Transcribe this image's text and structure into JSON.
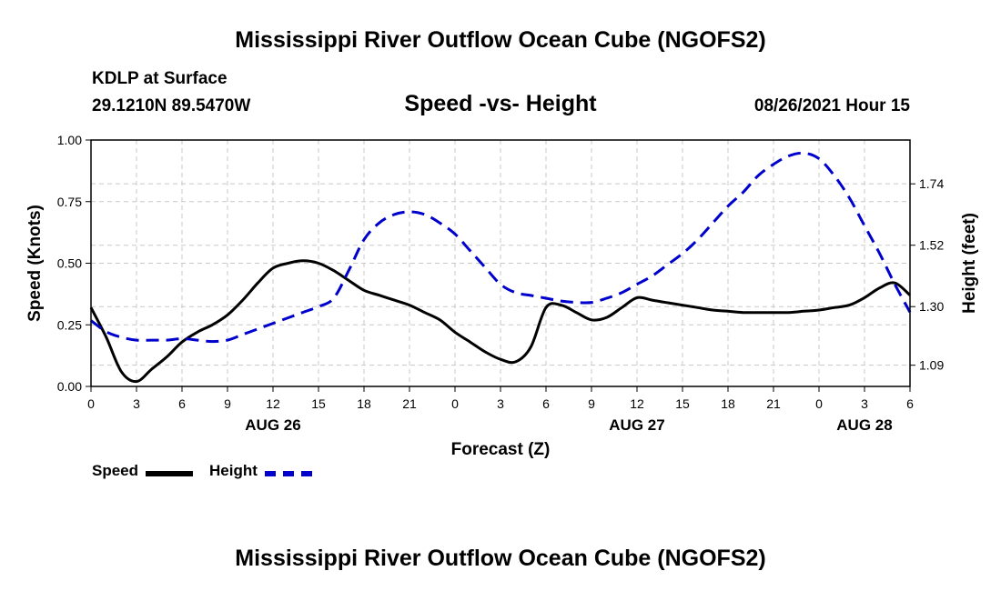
{
  "header": {
    "title": "Mississippi River Outflow Ocean Cube (NGOFS2)",
    "station": "KDLP at Surface",
    "coords": "29.1210N  89.5470W",
    "subtitle": "Speed -vs- Height",
    "datetime": "08/26/2021 Hour 15"
  },
  "footer": {
    "title": "Mississippi River Outflow Ocean Cube (NGOFS2)"
  },
  "legend": {
    "speed_label": "Speed",
    "height_label": "Height"
  },
  "colors": {
    "speed": "#000000",
    "height": "#0000cc",
    "grid": "#c8c8c8"
  },
  "chart_data": {
    "type": "line",
    "xlabel": "Forecast (Z)",
    "ylabel_left": "Speed (Knots)",
    "ylabel_right": "Height (feet)",
    "xlim": [
      0,
      54
    ],
    "ylim_left": [
      0,
      1.0
    ],
    "ylim_right": [
      1.014,
      1.897
    ],
    "x_ticks": [
      0,
      3,
      6,
      9,
      12,
      15,
      18,
      21,
      24,
      27,
      30,
      33,
      36,
      39,
      42,
      45,
      48,
      51,
      54
    ],
    "x_tick_labels": [
      "0",
      "3",
      "6",
      "9",
      "12",
      "15",
      "18",
      "21",
      "0",
      "3",
      "6",
      "9",
      "12",
      "15",
      "18",
      "21",
      "0",
      "3",
      "6"
    ],
    "y_left_ticks": [
      0,
      0.25,
      0.5,
      0.75,
      1.0
    ],
    "y_left_tick_labels": [
      "0.00",
      "0.25",
      "0.50",
      "0.75",
      "1.00"
    ],
    "y_right_ticks": [
      1.09,
      1.3,
      1.52,
      1.74
    ],
    "y_right_tick_labels": [
      "1.09",
      "1.30",
      "1.52",
      "1.74"
    ],
    "date_labels": [
      {
        "x": 12,
        "label": "AUG 26"
      },
      {
        "x": 36,
        "label": "AUG 27"
      },
      {
        "x": 51,
        "label": "AUG 28"
      }
    ],
    "grid": true,
    "series": [
      {
        "name": "Speed",
        "axis": "left",
        "style": "solid",
        "x": [
          0,
          1,
          2,
          3,
          4,
          5,
          6,
          7,
          8,
          9,
          10,
          11,
          12,
          13,
          14,
          15,
          16,
          17,
          18,
          19,
          20,
          21,
          22,
          23,
          24,
          25,
          26,
          27,
          28,
          29,
          30,
          31,
          32,
          33,
          34,
          35,
          36,
          37,
          38,
          39,
          40,
          41,
          42,
          43,
          44,
          45,
          46,
          47,
          48,
          49,
          50,
          51,
          52,
          53,
          54
        ],
        "values": [
          0.32,
          0.2,
          0.06,
          0.02,
          0.07,
          0.12,
          0.18,
          0.22,
          0.25,
          0.29,
          0.35,
          0.42,
          0.48,
          0.5,
          0.51,
          0.5,
          0.47,
          0.43,
          0.39,
          0.37,
          0.35,
          0.33,
          0.3,
          0.27,
          0.22,
          0.18,
          0.14,
          0.11,
          0.1,
          0.16,
          0.32,
          0.33,
          0.3,
          0.27,
          0.28,
          0.32,
          0.36,
          0.35,
          0.34,
          0.33,
          0.32,
          0.31,
          0.305,
          0.3,
          0.3,
          0.3,
          0.3,
          0.305,
          0.31,
          0.32,
          0.33,
          0.36,
          0.4,
          0.42,
          0.37
        ]
      },
      {
        "name": "Height",
        "axis": "right",
        "style": "dashed",
        "x": [
          0,
          1,
          2,
          3,
          4,
          5,
          6,
          7,
          8,
          9,
          10,
          11,
          12,
          13,
          14,
          15,
          16,
          17,
          18,
          19,
          20,
          21,
          22,
          23,
          24,
          25,
          26,
          27,
          28,
          29,
          30,
          31,
          32,
          33,
          34,
          35,
          36,
          37,
          38,
          39,
          40,
          41,
          42,
          43,
          44,
          45,
          46,
          47,
          48,
          49,
          50,
          51,
          52,
          53,
          54
        ],
        "values": [
          1.25,
          1.21,
          1.19,
          1.18,
          1.18,
          1.18,
          1.185,
          1.18,
          1.175,
          1.18,
          1.2,
          1.22,
          1.24,
          1.26,
          1.28,
          1.3,
          1.33,
          1.43,
          1.54,
          1.6,
          1.63,
          1.64,
          1.63,
          1.6,
          1.56,
          1.5,
          1.44,
          1.38,
          1.35,
          1.34,
          1.33,
          1.32,
          1.315,
          1.315,
          1.33,
          1.35,
          1.38,
          1.41,
          1.45,
          1.49,
          1.54,
          1.6,
          1.66,
          1.71,
          1.77,
          1.81,
          1.84,
          1.85,
          1.83,
          1.77,
          1.69,
          1.59,
          1.49,
          1.38,
          1.28
        ]
      }
    ]
  }
}
